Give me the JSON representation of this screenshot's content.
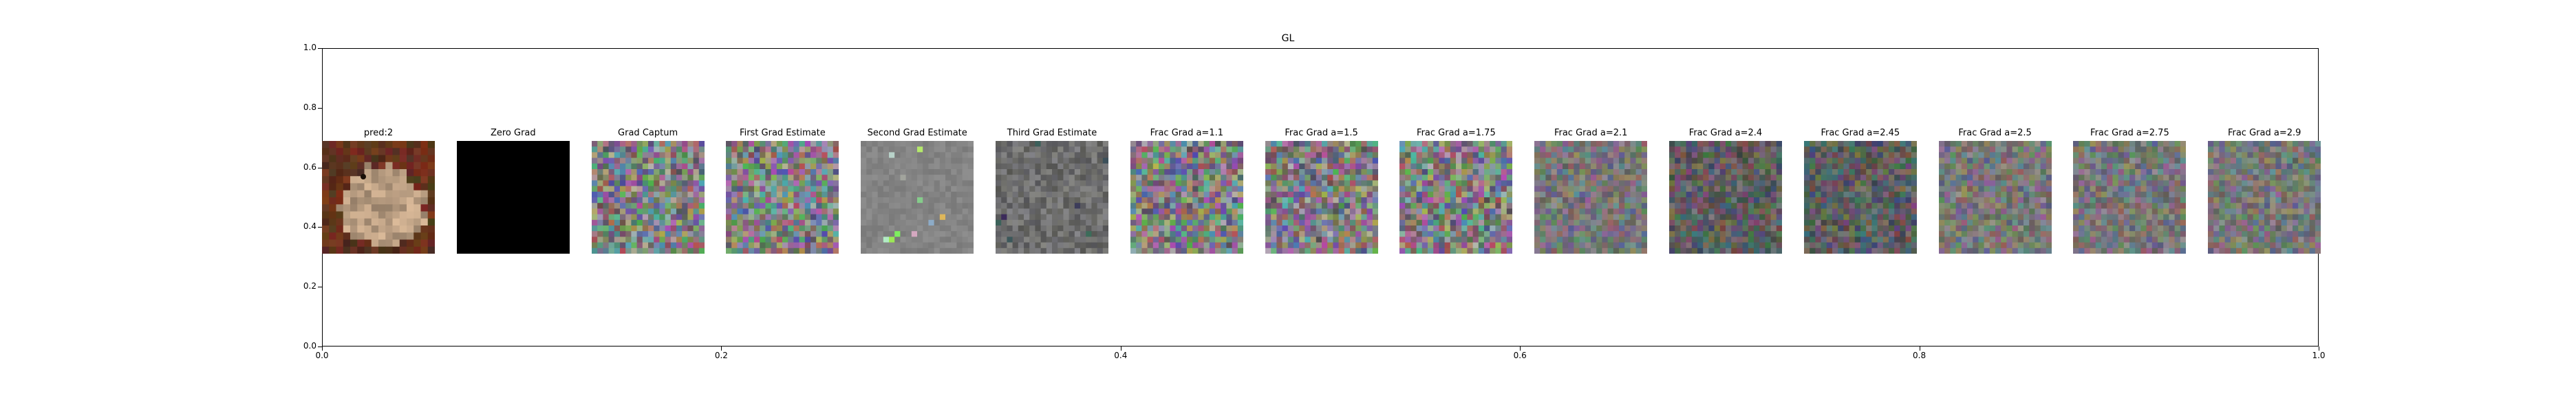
{
  "figure": {
    "title": "GL"
  },
  "chart_data": {
    "type": "image_grid",
    "title": "GL",
    "xlim": [
      0,
      1
    ],
    "ylim": [
      0,
      1
    ],
    "xticks": [
      "0.0",
      "0.2",
      "0.4",
      "0.6",
      "0.8",
      "1.0"
    ],
    "yticks": [
      "0.0",
      "0.2",
      "0.4",
      "0.6",
      "0.8",
      "1.0"
    ],
    "grid": false,
    "panels": [
      {
        "label": "pred:2",
        "kind": "photo-lizard"
      },
      {
        "label": "Zero Grad",
        "kind": "black"
      },
      {
        "label": "Grad Captum",
        "kind": "noise-color"
      },
      {
        "label": "First Grad Estimate",
        "kind": "noise-color"
      },
      {
        "label": "Second Grad Estimate",
        "kind": "noise-gray-sparse"
      },
      {
        "label": "Third Grad Estimate",
        "kind": "noise-gray-dark"
      },
      {
        "label": "Frac Grad a=1.1",
        "kind": "noise-color"
      },
      {
        "label": "Frac Grad a=1.5",
        "kind": "noise-color"
      },
      {
        "label": "Frac Grad a=1.75",
        "kind": "noise-color"
      },
      {
        "label": "Frac Grad a=2.1",
        "kind": "noise-muted"
      },
      {
        "label": "Frac Grad a=2.4",
        "kind": "noise-dark"
      },
      {
        "label": "Frac Grad a=2.45",
        "kind": "noise-dark"
      },
      {
        "label": "Frac Grad a=2.5",
        "kind": "noise-muted"
      },
      {
        "label": "Frac Grad a=2.75",
        "kind": "noise-muted"
      },
      {
        "label": "Frac Grad a=2.9",
        "kind": "noise-muted"
      }
    ]
  }
}
